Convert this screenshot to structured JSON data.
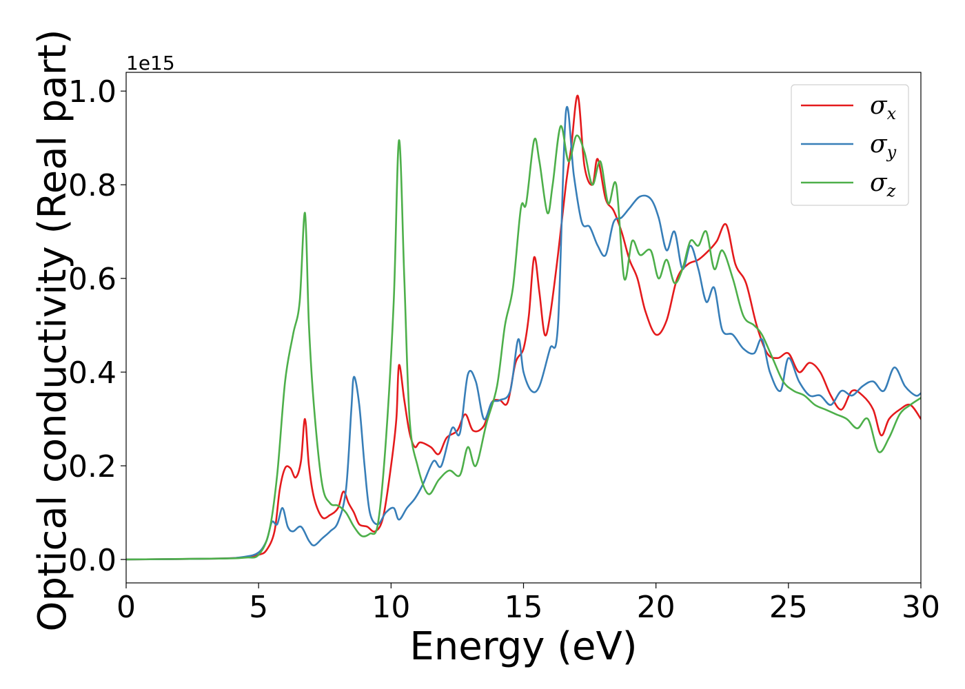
{
  "chart_data": {
    "type": "line",
    "title": "",
    "xlabel": "Energy (eV)",
    "ylabel": "Optical conductivity (Real part)",
    "y_offset_label": "1e15",
    "xlim": [
      0,
      30
    ],
    "ylim": [
      -0.05,
      1.04
    ],
    "xticks": [
      0,
      5,
      10,
      15,
      20,
      25,
      30
    ],
    "yticks": [
      0.0,
      0.2,
      0.4,
      0.6,
      0.8,
      1.0
    ],
    "grid": false,
    "legend_position": "top-right",
    "series": [
      {
        "name": "σx",
        "symbol": "σ",
        "subscript": "x",
        "color": "#e41a1c",
        "points": [
          [
            0,
            0
          ],
          [
            3.5,
            0.002
          ],
          [
            4.5,
            0.005
          ],
          [
            5,
            0.01
          ],
          [
            5.3,
            0.02
          ],
          [
            5.6,
            0.06
          ],
          [
            5.8,
            0.15
          ],
          [
            6.0,
            0.195
          ],
          [
            6.2,
            0.195
          ],
          [
            6.4,
            0.175
          ],
          [
            6.6,
            0.21
          ],
          [
            6.75,
            0.3
          ],
          [
            6.9,
            0.2
          ],
          [
            7.1,
            0.13
          ],
          [
            7.4,
            0.09
          ],
          [
            7.7,
            0.095
          ],
          [
            8.0,
            0.11
          ],
          [
            8.2,
            0.145
          ],
          [
            8.4,
            0.12
          ],
          [
            8.6,
            0.1
          ],
          [
            8.8,
            0.075
          ],
          [
            9.1,
            0.07
          ],
          [
            9.4,
            0.06
          ],
          [
            9.7,
            0.09
          ],
          [
            10.0,
            0.2
          ],
          [
            10.2,
            0.3
          ],
          [
            10.3,
            0.415
          ],
          [
            10.5,
            0.34
          ],
          [
            10.7,
            0.27
          ],
          [
            10.9,
            0.24
          ],
          [
            11.1,
            0.25
          ],
          [
            11.5,
            0.24
          ],
          [
            11.8,
            0.225
          ],
          [
            12.1,
            0.26
          ],
          [
            12.5,
            0.275
          ],
          [
            12.8,
            0.31
          ],
          [
            13.1,
            0.275
          ],
          [
            13.5,
            0.285
          ],
          [
            13.8,
            0.335
          ],
          [
            14.1,
            0.34
          ],
          [
            14.4,
            0.335
          ],
          [
            14.7,
            0.42
          ],
          [
            15.0,
            0.45
          ],
          [
            15.2,
            0.52
          ],
          [
            15.4,
            0.645
          ],
          [
            15.6,
            0.57
          ],
          [
            15.8,
            0.48
          ],
          [
            16.0,
            0.52
          ],
          [
            16.3,
            0.65
          ],
          [
            16.6,
            0.8
          ],
          [
            16.8,
            0.88
          ],
          [
            17.05,
            0.99
          ],
          [
            17.3,
            0.84
          ],
          [
            17.6,
            0.8
          ],
          [
            17.8,
            0.855
          ],
          [
            18.1,
            0.77
          ],
          [
            18.4,
            0.745
          ],
          [
            18.7,
            0.7
          ],
          [
            19.0,
            0.64
          ],
          [
            19.3,
            0.6
          ],
          [
            19.6,
            0.53
          ],
          [
            20.0,
            0.48
          ],
          [
            20.4,
            0.51
          ],
          [
            20.8,
            0.6
          ],
          [
            21.2,
            0.63
          ],
          [
            21.6,
            0.64
          ],
          [
            22.0,
            0.66
          ],
          [
            22.3,
            0.68
          ],
          [
            22.65,
            0.715
          ],
          [
            23.0,
            0.63
          ],
          [
            23.4,
            0.59
          ],
          [
            23.8,
            0.5
          ],
          [
            24.2,
            0.44
          ],
          [
            24.6,
            0.43
          ],
          [
            25.0,
            0.44
          ],
          [
            25.4,
            0.4
          ],
          [
            25.8,
            0.42
          ],
          [
            26.2,
            0.4
          ],
          [
            26.6,
            0.35
          ],
          [
            27.0,
            0.32
          ],
          [
            27.4,
            0.36
          ],
          [
            27.8,
            0.35
          ],
          [
            28.2,
            0.32
          ],
          [
            28.5,
            0.265
          ],
          [
            28.8,
            0.3
          ],
          [
            29.2,
            0.32
          ],
          [
            29.6,
            0.33
          ],
          [
            30.0,
            0.3
          ]
        ]
      },
      {
        "name": "σy",
        "symbol": "σ",
        "subscript": "y",
        "color": "#377eb8",
        "points": [
          [
            0,
            0
          ],
          [
            3.5,
            0.002
          ],
          [
            4.5,
            0.006
          ],
          [
            5.0,
            0.015
          ],
          [
            5.3,
            0.04
          ],
          [
            5.5,
            0.08
          ],
          [
            5.7,
            0.075
          ],
          [
            5.9,
            0.11
          ],
          [
            6.1,
            0.07
          ],
          [
            6.3,
            0.06
          ],
          [
            6.6,
            0.07
          ],
          [
            6.9,
            0.04
          ],
          [
            7.1,
            0.03
          ],
          [
            7.4,
            0.045
          ],
          [
            7.7,
            0.06
          ],
          [
            8.0,
            0.08
          ],
          [
            8.3,
            0.15
          ],
          [
            8.5,
            0.32
          ],
          [
            8.6,
            0.39
          ],
          [
            8.8,
            0.33
          ],
          [
            9.0,
            0.2
          ],
          [
            9.2,
            0.1
          ],
          [
            9.5,
            0.075
          ],
          [
            9.8,
            0.1
          ],
          [
            10.1,
            0.11
          ],
          [
            10.3,
            0.085
          ],
          [
            10.6,
            0.11
          ],
          [
            10.9,
            0.13
          ],
          [
            11.2,
            0.16
          ],
          [
            11.6,
            0.21
          ],
          [
            11.9,
            0.2
          ],
          [
            12.3,
            0.28
          ],
          [
            12.6,
            0.27
          ],
          [
            12.9,
            0.395
          ],
          [
            13.2,
            0.38
          ],
          [
            13.5,
            0.3
          ],
          [
            13.8,
            0.335
          ],
          [
            14.1,
            0.34
          ],
          [
            14.5,
            0.36
          ],
          [
            14.8,
            0.47
          ],
          [
            15.0,
            0.4
          ],
          [
            15.3,
            0.36
          ],
          [
            15.6,
            0.37
          ],
          [
            16.0,
            0.45
          ],
          [
            16.3,
            0.5
          ],
          [
            16.6,
            0.955
          ],
          [
            16.9,
            0.82
          ],
          [
            17.2,
            0.72
          ],
          [
            17.5,
            0.71
          ],
          [
            17.8,
            0.67
          ],
          [
            18.1,
            0.65
          ],
          [
            18.4,
            0.72
          ],
          [
            18.7,
            0.73
          ],
          [
            19.0,
            0.75
          ],
          [
            19.4,
            0.775
          ],
          [
            19.8,
            0.77
          ],
          [
            20.1,
            0.73
          ],
          [
            20.4,
            0.66
          ],
          [
            20.7,
            0.7
          ],
          [
            21.0,
            0.62
          ],
          [
            21.3,
            0.67
          ],
          [
            21.6,
            0.62
          ],
          [
            21.9,
            0.55
          ],
          [
            22.2,
            0.58
          ],
          [
            22.5,
            0.49
          ],
          [
            22.9,
            0.48
          ],
          [
            23.3,
            0.45
          ],
          [
            23.7,
            0.44
          ],
          [
            24.0,
            0.47
          ],
          [
            24.3,
            0.4
          ],
          [
            24.7,
            0.36
          ],
          [
            25.0,
            0.43
          ],
          [
            25.4,
            0.38
          ],
          [
            25.8,
            0.35
          ],
          [
            26.2,
            0.35
          ],
          [
            26.6,
            0.33
          ],
          [
            27.0,
            0.36
          ],
          [
            27.4,
            0.35
          ],
          [
            27.8,
            0.37
          ],
          [
            28.2,
            0.38
          ],
          [
            28.6,
            0.36
          ],
          [
            29.0,
            0.41
          ],
          [
            29.4,
            0.37
          ],
          [
            29.8,
            0.35
          ],
          [
            30.0,
            0.355
          ]
        ]
      },
      {
        "name": "σz",
        "symbol": "σ",
        "subscript": "z",
        "color": "#4daf4a",
        "points": [
          [
            0,
            0
          ],
          [
            3.5,
            0.002
          ],
          [
            4.5,
            0.004
          ],
          [
            5.0,
            0.01
          ],
          [
            5.4,
            0.06
          ],
          [
            5.7,
            0.18
          ],
          [
            6.0,
            0.38
          ],
          [
            6.3,
            0.48
          ],
          [
            6.55,
            0.55
          ],
          [
            6.75,
            0.74
          ],
          [
            6.9,
            0.5
          ],
          [
            7.1,
            0.32
          ],
          [
            7.4,
            0.16
          ],
          [
            7.7,
            0.12
          ],
          [
            8.0,
            0.115
          ],
          [
            8.3,
            0.1
          ],
          [
            8.6,
            0.07
          ],
          [
            8.9,
            0.05
          ],
          [
            9.2,
            0.055
          ],
          [
            9.5,
            0.075
          ],
          [
            9.8,
            0.25
          ],
          [
            10.1,
            0.55
          ],
          [
            10.3,
            0.895
          ],
          [
            10.5,
            0.6
          ],
          [
            10.7,
            0.3
          ],
          [
            11.0,
            0.2
          ],
          [
            11.4,
            0.14
          ],
          [
            11.8,
            0.17
          ],
          [
            12.2,
            0.19
          ],
          [
            12.6,
            0.18
          ],
          [
            12.9,
            0.24
          ],
          [
            13.2,
            0.2
          ],
          [
            13.6,
            0.29
          ],
          [
            14.0,
            0.37
          ],
          [
            14.3,
            0.5
          ],
          [
            14.6,
            0.58
          ],
          [
            14.9,
            0.75
          ],
          [
            15.1,
            0.76
          ],
          [
            15.4,
            0.895
          ],
          [
            15.6,
            0.85
          ],
          [
            15.9,
            0.74
          ],
          [
            16.1,
            0.8
          ],
          [
            16.4,
            0.925
          ],
          [
            16.7,
            0.85
          ],
          [
            17.0,
            0.905
          ],
          [
            17.3,
            0.87
          ],
          [
            17.6,
            0.8
          ],
          [
            17.9,
            0.85
          ],
          [
            18.2,
            0.76
          ],
          [
            18.5,
            0.8
          ],
          [
            18.8,
            0.6
          ],
          [
            19.1,
            0.68
          ],
          [
            19.4,
            0.65
          ],
          [
            19.8,
            0.66
          ],
          [
            20.1,
            0.6
          ],
          [
            20.4,
            0.64
          ],
          [
            20.7,
            0.59
          ],
          [
            21.0,
            0.62
          ],
          [
            21.3,
            0.68
          ],
          [
            21.6,
            0.67
          ],
          [
            21.9,
            0.7
          ],
          [
            22.2,
            0.62
          ],
          [
            22.5,
            0.66
          ],
          [
            22.9,
            0.6
          ],
          [
            23.3,
            0.52
          ],
          [
            23.7,
            0.5
          ],
          [
            24.0,
            0.48
          ],
          [
            24.4,
            0.43
          ],
          [
            24.8,
            0.38
          ],
          [
            25.2,
            0.36
          ],
          [
            25.6,
            0.35
          ],
          [
            26.0,
            0.33
          ],
          [
            26.4,
            0.32
          ],
          [
            26.8,
            0.31
          ],
          [
            27.2,
            0.3
          ],
          [
            27.6,
            0.28
          ],
          [
            28.0,
            0.3
          ],
          [
            28.4,
            0.23
          ],
          [
            28.8,
            0.26
          ],
          [
            29.2,
            0.31
          ],
          [
            29.6,
            0.33
          ],
          [
            30.0,
            0.345
          ]
        ]
      }
    ]
  }
}
